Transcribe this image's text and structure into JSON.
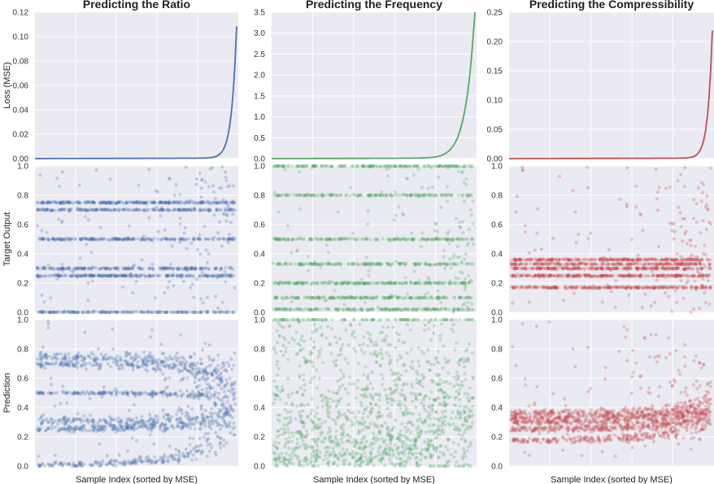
{
  "chart_data": {
    "type": "scatter",
    "columns": [
      {
        "title": "Predicting the Ratio",
        "color": "#4c72b0",
        "loss_ylim": [
          0,
          0.12
        ],
        "loss_ticks": [
          "0.00",
          "0.02",
          "0.04",
          "0.06",
          "0.08",
          "0.10",
          "0.12"
        ],
        "loss_max": 0.108,
        "loss_sharpness": 40,
        "levels": [
          0.0,
          0.25,
          0.3,
          0.5,
          0.7,
          0.75
        ],
        "level_spread": [
          0.02,
          0.02,
          0.03,
          0.01,
          0.03,
          0.03
        ]
      },
      {
        "title": "Predicting the Frequency",
        "color": "#55a868",
        "loss_ylim": [
          0,
          3.5
        ],
        "loss_ticks": [
          "0.0",
          "0.5",
          "1.0",
          "1.5",
          "2.0",
          "2.5",
          "3.0",
          "3.5"
        ],
        "loss_max": 3.5,
        "loss_sharpness": 22,
        "levels": [
          0.02,
          0.1,
          0.2,
          0.33,
          0.5,
          0.8,
          1.0
        ],
        "level_spread": [
          0.05,
          0.1,
          0.12,
          0.12,
          0.1,
          0.25,
          0.3
        ]
      },
      {
        "title": "Predicting the Compressibility",
        "color": "#c44e52",
        "loss_ylim": [
          0,
          0.25
        ],
        "loss_ticks": [
          "0.00",
          "0.05",
          "0.10",
          "0.15",
          "0.20",
          "0.25"
        ],
        "loss_max": 0.218,
        "loss_sharpness": 45,
        "levels": [
          0.17,
          0.25,
          0.3,
          0.33,
          0.36
        ],
        "level_spread": [
          0.02,
          0.02,
          0.02,
          0.02,
          0.02
        ]
      }
    ],
    "row_ylabels": [
      "Loss (MSE)",
      "Target Output",
      "Prediction"
    ],
    "unit_ylim": [
      0,
      1.0
    ],
    "unit_ticks": [
      "0.0",
      "0.2",
      "0.4",
      "0.6",
      "0.8",
      "1.0"
    ],
    "xlabel": "Sample Index (sorted by MSE)",
    "grid": true
  }
}
